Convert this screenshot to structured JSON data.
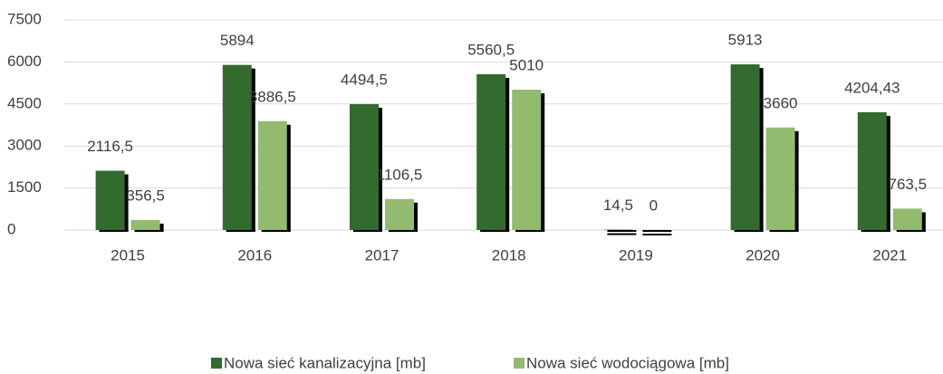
{
  "chart_data": {
    "type": "bar",
    "categories": [
      "2015",
      "2016",
      "2017",
      "2018",
      "2019",
      "2020",
      "2021"
    ],
    "series": [
      {
        "name": "Nowa sieć kanalizacyjna [mb]",
        "color": "#336a2e",
        "values": [
          2116.5,
          5894,
          4494.5,
          5560.5,
          14.5,
          5913,
          4204.43
        ],
        "value_labels": [
          "2116,5",
          "5894",
          "4494,5",
          "5560,5",
          "14,5",
          "5913",
          "4204,43"
        ]
      },
      {
        "name": "Nowa sieć wodociągowa [mb]",
        "color": "#93bb6f",
        "values": [
          356.5,
          3886.5,
          1106.5,
          5010,
          0,
          3660,
          763.5
        ],
        "value_labels": [
          "356,5",
          "3886,5",
          "1106,5",
          "5010",
          "0",
          "3660",
          "763,5"
        ]
      }
    ],
    "ylim": [
      0,
      7500
    ],
    "yticks": [
      0,
      1500,
      3000,
      4500,
      6000,
      7500
    ],
    "grid": true,
    "legend": "bottom"
  }
}
